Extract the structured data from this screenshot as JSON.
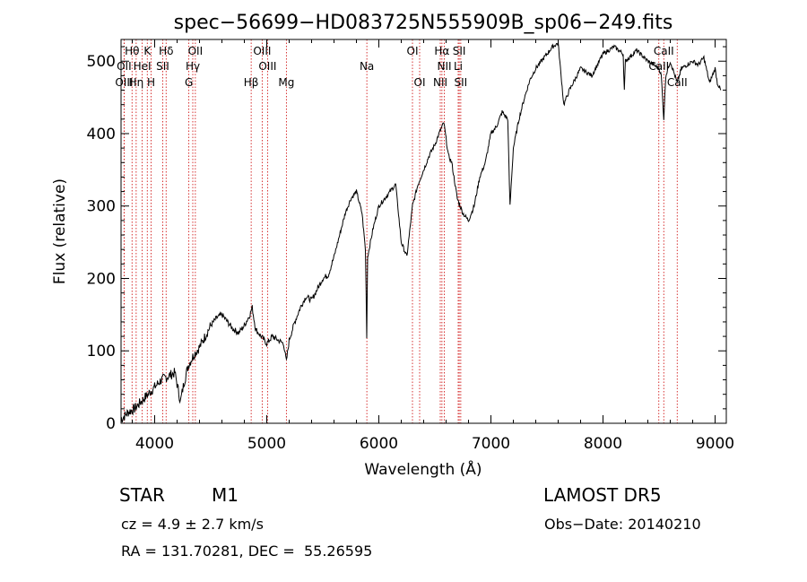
{
  "chart_data": {
    "type": "line",
    "title": "spec−56699−HD083725N555909B_sp06−249.fits",
    "xlabel": "Wavelength (Å)",
    "ylabel": "Flux (relative)",
    "xlim": [
      3700,
      9100
    ],
    "ylim": [
      0,
      530
    ],
    "xticks": [
      4000,
      5000,
      6000,
      7000,
      8000,
      9000
    ],
    "yticks": [
      0,
      100,
      200,
      300,
      400,
      500
    ],
    "grid": false,
    "series": [
      {
        "color": "#000000",
        "x": [
          3700,
          3760,
          3820,
          3880,
          3940,
          4000,
          4060,
          4120,
          4180,
          4230,
          4260,
          4300,
          4350,
          4400,
          4450,
          4500,
          4550,
          4600,
          4650,
          4700,
          4750,
          4800,
          4850,
          4870,
          4900,
          4950,
          5000,
          5050,
          5100,
          5150,
          5175,
          5200,
          5250,
          5300,
          5350,
          5400,
          5450,
          5500,
          5550,
          5600,
          5650,
          5700,
          5750,
          5800,
          5850,
          5880,
          5892,
          5900,
          5950,
          6000,
          6050,
          6100,
          6150,
          6200,
          6250,
          6300,
          6350,
          6400,
          6450,
          6500,
          6550,
          6580,
          6620,
          6650,
          6700,
          6750,
          6800,
          6850,
          6900,
          6950,
          7000,
          7050,
          7100,
          7150,
          7170,
          7200,
          7250,
          7300,
          7350,
          7400,
          7450,
          7500,
          7550,
          7600,
          7620,
          7650,
          7700,
          7800,
          7900,
          8000,
          8100,
          8180,
          8190,
          8200,
          8300,
          8400,
          8500,
          8520,
          8542,
          8560,
          8600,
          8662,
          8700,
          8800,
          8850,
          8900,
          8950,
          9000,
          9020,
          9050
        ],
        "y": [
          5,
          15,
          20,
          30,
          40,
          50,
          60,
          65,
          70,
          30,
          55,
          80,
          95,
          105,
          120,
          135,
          145,
          150,
          140,
          130,
          125,
          135,
          150,
          160,
          130,
          120,
          110,
          120,
          115,
          110,
          85,
          115,
          140,
          160,
          175,
          170,
          185,
          200,
          205,
          230,
          260,
          290,
          310,
          320,
          290,
          240,
          120,
          230,
          270,
          300,
          310,
          320,
          330,
          250,
          230,
          300,
          330,
          350,
          370,
          385,
          405,
          415,
          370,
          360,
          310,
          290,
          280,
          300,
          340,
          360,
          400,
          410,
          430,
          420,
          300,
          380,
          420,
          450,
          475,
          490,
          500,
          510,
          520,
          525,
          490,
          440,
          460,
          490,
          480,
          510,
          520,
          510,
          460,
          500,
          515,
          500,
          490,
          480,
          420,
          480,
          500,
          470,
          490,
          500,
          495,
          505,
          470,
          490,
          470,
          460
        ]
      }
    ],
    "lines": [
      {
        "label": "Hθ",
        "row": 0,
        "x": 3798
      },
      {
        "label": "K",
        "row": 0,
        "x": 3934
      },
      {
        "label": "Hδ",
        "row": 0,
        "x": 4102
      },
      {
        "label": "OII",
        "row": 0,
        "x": 4363
      },
      {
        "label": "OIII",
        "row": 0,
        "x": 4959
      },
      {
        "label": "OI",
        "row": 0,
        "x": 6300
      },
      {
        "label": "Hα",
        "row": 0,
        "x": 6563
      },
      {
        "label": "SII",
        "row": 0,
        "x": 6717
      },
      {
        "label": "CaII",
        "row": 0,
        "x": 8542
      },
      {
        "label": "OII",
        "row": 1,
        "x": 3727
      },
      {
        "label": "HeI",
        "row": 1,
        "x": 3889
      },
      {
        "label": "SII",
        "row": 1,
        "x": 4072
      },
      {
        "label": "Hγ",
        "row": 1,
        "x": 4340
      },
      {
        "label": "OIII",
        "row": 1,
        "x": 5007
      },
      {
        "label": "Na",
        "row": 1,
        "x": 5893
      },
      {
        "label": "NII",
        "row": 1,
        "x": 6584
      },
      {
        "label": "Li",
        "row": 1,
        "x": 6708
      },
      {
        "label": "CaII",
        "row": 1,
        "x": 8498
      },
      {
        "label": "OIII",
        "row": 2,
        "x": 3727
      },
      {
        "label": "Hη",
        "row": 2,
        "x": 3835
      },
      {
        "label": "H",
        "row": 2,
        "x": 3968
      },
      {
        "label": "G",
        "row": 2,
        "x": 4305
      },
      {
        "label": "Hβ",
        "row": 2,
        "x": 4861
      },
      {
        "label": "Mg",
        "row": 2,
        "x": 5175
      },
      {
        "label": "OI",
        "row": 2,
        "x": 6364
      },
      {
        "label": "NII",
        "row": 2,
        "x": 6548
      },
      {
        "label": "SII",
        "row": 2,
        "x": 6731
      },
      {
        "label": "CaII",
        "row": 2,
        "x": 8662
      }
    ]
  },
  "info": {
    "class": "STAR",
    "subclass": "M1",
    "survey": "LAMOST DR5",
    "cz": "cz = 4.9 ± 2.7 km/s",
    "obs_date": "Obs−Date: 20140210",
    "radec": "RA = 131.70281, DEC =  55.26595"
  }
}
